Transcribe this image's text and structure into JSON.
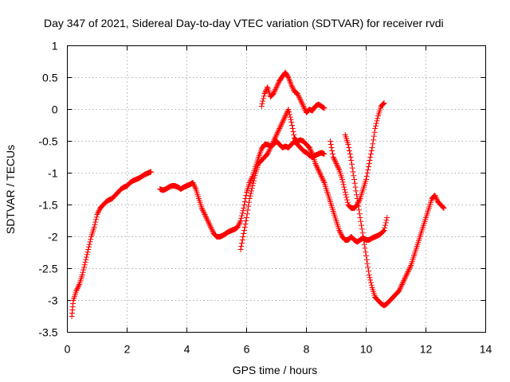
{
  "chart_data": {
    "type": "scatter",
    "title": "Day 347 of 2021, Sidereal Day-to-day VTEC variation (SDTVAR) for receiver rvdi",
    "xlabel": "GPS time / hours",
    "ylabel": "SDTVAR / TECUs",
    "xlim": [
      0,
      14
    ],
    "ylim": [
      -3.5,
      1
    ],
    "x_ticks": [
      0,
      2,
      4,
      6,
      8,
      10,
      12,
      14
    ],
    "y_ticks": [
      -3.5,
      -3,
      -2.5,
      -2,
      -1.5,
      -1,
      -0.5,
      0,
      0.5,
      1
    ],
    "x_tick_labels": [
      "0",
      "2",
      "4",
      "6",
      "8",
      "10",
      "12",
      "14"
    ],
    "y_tick_labels": [
      "-3.5",
      "-3",
      "-2.5",
      "-2",
      "-1.5",
      "-1",
      "-0.5",
      "0",
      "0.5",
      "1"
    ],
    "grid": true,
    "marker": "plus",
    "colors": {
      "series": "#ff0000",
      "axis": "#000000",
      "grid": "#b0b0b0"
    },
    "series": [
      {
        "x": [
          0.15,
          0.2,
          0.3,
          0.4,
          0.5,
          0.6,
          0.7,
          0.8,
          0.9,
          1.0,
          1.1,
          1.2,
          1.3,
          1.4,
          1.5,
          1.6,
          1.7,
          1.8,
          1.9,
          2.0,
          2.1,
          2.2,
          2.3,
          2.4,
          2.5,
          2.6,
          2.7,
          2.8
        ],
        "y": [
          -3.25,
          -3.0,
          -2.85,
          -2.75,
          -2.6,
          -2.4,
          -2.2,
          -2.0,
          -1.85,
          -1.65,
          -1.55,
          -1.5,
          -1.45,
          -1.42,
          -1.4,
          -1.35,
          -1.3,
          -1.25,
          -1.22,
          -1.2,
          -1.15,
          -1.12,
          -1.1,
          -1.08,
          -1.05,
          -1.02,
          -1.0,
          -0.98
        ]
      },
      {
        "x": [
          3.1,
          3.2,
          3.3,
          3.4,
          3.5,
          3.6,
          3.7,
          3.8,
          3.9,
          4.0,
          4.1,
          4.2,
          4.3,
          4.4,
          4.5,
          4.6,
          4.7,
          4.8,
          4.9,
          5.0,
          5.1,
          5.2,
          5.3,
          5.4,
          5.5,
          5.6,
          5.7,
          5.8,
          5.9,
          6.0,
          6.1,
          6.2,
          6.3,
          6.4,
          6.5,
          6.6,
          6.7,
          6.8,
          6.9,
          7.0,
          7.1,
          7.2,
          7.3,
          7.4,
          7.5,
          7.6,
          7.7,
          7.8,
          7.9,
          8.0,
          8.1,
          8.2,
          8.3,
          8.4,
          8.5,
          8.6
        ],
        "y": [
          -1.25,
          -1.27,
          -1.25,
          -1.22,
          -1.2,
          -1.2,
          -1.22,
          -1.25,
          -1.22,
          -1.2,
          -1.18,
          -1.15,
          -1.25,
          -1.4,
          -1.55,
          -1.65,
          -1.75,
          -1.85,
          -1.95,
          -2.0,
          -2.0,
          -1.98,
          -1.95,
          -1.92,
          -1.9,
          -1.88,
          -1.85,
          -1.75,
          -1.55,
          -1.3,
          -1.15,
          -1.05,
          -0.9,
          -0.75,
          -0.62,
          -0.55,
          -0.55,
          -0.58,
          -0.55,
          -0.5,
          -0.55,
          -0.6,
          -0.58,
          -0.6,
          -0.55,
          -0.5,
          -0.55,
          -0.6,
          -0.65,
          -0.68,
          -0.72,
          -0.75,
          -0.72,
          -0.7,
          -0.68,
          -0.7
        ]
      },
      {
        "x": [
          5.8,
          5.9,
          6.0,
          6.1,
          6.2,
          6.3,
          6.4,
          6.5,
          6.6,
          6.7,
          6.8,
          6.9,
          7.0,
          7.1,
          7.2,
          7.3,
          7.4,
          7.5,
          7.6,
          7.7,
          7.8,
          7.9,
          8.0,
          8.1,
          8.2,
          8.3,
          8.4,
          8.5,
          8.6,
          8.7,
          8.8,
          8.9,
          9.0,
          9.1,
          9.2,
          9.3,
          9.4,
          9.5,
          9.6,
          9.7,
          9.8,
          9.9,
          10.0,
          10.1,
          10.2,
          10.3,
          10.4,
          10.5,
          10.6,
          10.7
        ],
        "y": [
          -2.2,
          -1.95,
          -1.7,
          -1.4,
          -1.2,
          -1.0,
          -0.85,
          -0.8,
          -0.75,
          -0.7,
          -0.6,
          -0.5,
          -0.4,
          -0.3,
          -0.2,
          -0.1,
          0.0,
          -0.2,
          -0.45,
          -0.5,
          -0.48,
          -0.5,
          -0.55,
          -0.6,
          -0.7,
          -0.85,
          -0.95,
          -1.05,
          -1.15,
          -1.3,
          -1.45,
          -1.6,
          -1.75,
          -1.9,
          -2.0,
          -2.05,
          -2.05,
          -2.0,
          -2.05,
          -2.08,
          -2.05,
          -2.02,
          -2.05,
          -2.05,
          -2.02,
          -2.0,
          -1.98,
          -1.95,
          -1.9,
          -1.7
        ]
      },
      {
        "x": [
          6.5,
          6.6,
          6.7,
          6.8,
          6.9,
          7.0,
          7.1,
          7.2,
          7.3,
          7.4,
          7.5,
          7.6,
          7.7,
          7.8,
          7.9,
          8.0,
          8.1,
          8.2,
          8.3,
          8.4,
          8.5,
          8.6
        ],
        "y": [
          0.05,
          0.25,
          0.35,
          0.2,
          0.25,
          0.35,
          0.45,
          0.52,
          0.58,
          0.5,
          0.38,
          0.28,
          0.25,
          0.15,
          0.05,
          -0.05,
          0.0,
          -0.02,
          0.05,
          0.08,
          0.05,
          0.02
        ]
      },
      {
        "x": [
          8.8,
          8.9,
          9.0,
          9.1,
          9.2,
          9.3,
          9.4,
          9.5,
          9.6,
          9.7,
          9.8,
          9.9,
          10.0,
          10.1,
          10.2,
          10.3,
          10.4,
          10.5,
          10.6
        ],
        "y": [
          -0.5,
          -0.75,
          -0.85,
          -0.95,
          -1.1,
          -1.3,
          -1.5,
          -1.55,
          -1.55,
          -1.5,
          -1.4,
          -1.25,
          -1.1,
          -0.85,
          -0.6,
          -0.3,
          -0.1,
          0.05,
          0.1
        ]
      },
      {
        "x": [
          9.3,
          9.4,
          9.5,
          9.6,
          9.7,
          9.8,
          9.9,
          10.0,
          10.1,
          10.2,
          10.3,
          10.4,
          10.5,
          10.6,
          10.7,
          10.8,
          10.9,
          11.0,
          11.1,
          11.2,
          11.3,
          11.4,
          11.5,
          11.6,
          11.7,
          11.8,
          11.9,
          12.0,
          12.1,
          12.2,
          12.3,
          12.4,
          12.5,
          12.6
        ],
        "y": [
          -0.4,
          -0.55,
          -0.8,
          -1.1,
          -1.4,
          -1.7,
          -2.0,
          -2.3,
          -2.6,
          -2.8,
          -2.95,
          -3.0,
          -3.05,
          -3.08,
          -3.05,
          -3.0,
          -2.95,
          -2.9,
          -2.85,
          -2.75,
          -2.65,
          -2.55,
          -2.45,
          -2.3,
          -2.15,
          -2.0,
          -1.85,
          -1.7,
          -1.55,
          -1.4,
          -1.35,
          -1.45,
          -1.5,
          -1.55
        ]
      }
    ]
  }
}
